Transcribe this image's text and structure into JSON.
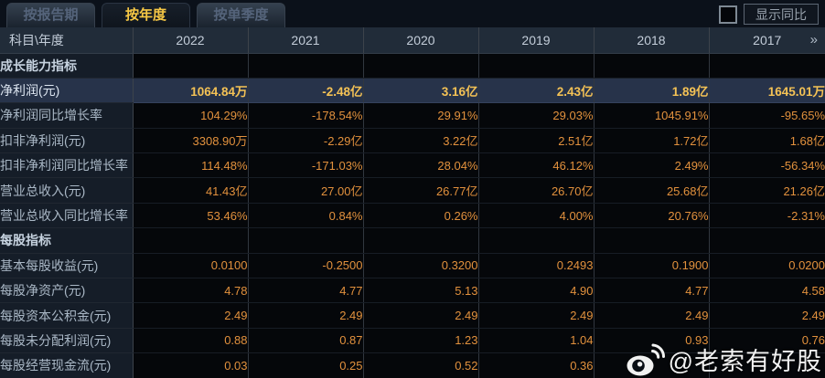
{
  "tabs": [
    {
      "label": "按报告期",
      "active": false
    },
    {
      "label": "按年度",
      "active": true
    },
    {
      "label": "按单季度",
      "active": false
    }
  ],
  "controls": {
    "show_yoy_label": "显示同比",
    "checkbox_checked": false
  },
  "table": {
    "corner_label": "科目\\年度",
    "years": [
      "2022",
      "2021",
      "2020",
      "2019",
      "2018",
      "2017"
    ],
    "more_icon": "»",
    "rows": [
      {
        "type": "section",
        "label": "成长能力指标",
        "highlight": false,
        "values": [
          "",
          "",
          "",
          "",
          "",
          ""
        ]
      },
      {
        "type": "data",
        "label": "净利润(元)",
        "highlight": true,
        "values": [
          "1064.84万",
          "-2.48亿",
          "3.16亿",
          "2.43亿",
          "1.89亿",
          "1645.01万"
        ]
      },
      {
        "type": "data",
        "label": "净利润同比增长率",
        "highlight": false,
        "values": [
          "104.29%",
          "-178.54%",
          "29.91%",
          "29.03%",
          "1045.91%",
          "-95.65%"
        ]
      },
      {
        "type": "data",
        "label": "扣非净利润(元)",
        "highlight": false,
        "values": [
          "3308.90万",
          "-2.29亿",
          "3.22亿",
          "2.51亿",
          "1.72亿",
          "1.68亿"
        ]
      },
      {
        "type": "data",
        "label": "扣非净利润同比增长率",
        "highlight": false,
        "values": [
          "114.48%",
          "-171.03%",
          "28.04%",
          "46.12%",
          "2.49%",
          "-56.34%"
        ]
      },
      {
        "type": "data",
        "label": "营业总收入(元)",
        "highlight": false,
        "values": [
          "41.43亿",
          "27.00亿",
          "26.77亿",
          "26.70亿",
          "25.68亿",
          "21.26亿"
        ]
      },
      {
        "type": "data",
        "label": "营业总收入同比增长率",
        "highlight": false,
        "values": [
          "53.46%",
          "0.84%",
          "0.26%",
          "4.00%",
          "20.76%",
          "-2.31%"
        ]
      },
      {
        "type": "section",
        "label": "每股指标",
        "highlight": false,
        "values": [
          "",
          "",
          "",
          "",
          "",
          ""
        ]
      },
      {
        "type": "data",
        "label": "基本每股收益(元)",
        "highlight": false,
        "values": [
          "0.0100",
          "-0.2500",
          "0.3200",
          "0.2493",
          "0.1900",
          "0.0200"
        ]
      },
      {
        "type": "data",
        "label": "每股净资产(元)",
        "highlight": false,
        "values": [
          "4.78",
          "4.77",
          "5.13",
          "4.90",
          "4.77",
          "4.58"
        ]
      },
      {
        "type": "data",
        "label": "每股资本公积金(元)",
        "highlight": false,
        "values": [
          "2.49",
          "2.49",
          "2.49",
          "2.49",
          "2.49",
          "2.49"
        ]
      },
      {
        "type": "data",
        "label": "每股未分配利润(元)",
        "highlight": false,
        "values": [
          "0.88",
          "0.87",
          "1.23",
          "1.04",
          "0.93",
          "0.76"
        ]
      },
      {
        "type": "data",
        "label": "每股经营现金流(元)",
        "highlight": false,
        "values": [
          "0.03",
          "0.25",
          "0.52",
          "0.36",
          "",
          ""
        ]
      }
    ]
  },
  "watermark": {
    "icon": "weibo-icon",
    "handle": "@老索有好股"
  },
  "colors": {
    "accent_gold": "#f7c845",
    "value_orange": "#e2913d",
    "highlight_row_bg": "#27334a",
    "header_bg": "#212c39",
    "label_cell_bg": "#151d28",
    "data_cell_bg": "#05070a"
  }
}
